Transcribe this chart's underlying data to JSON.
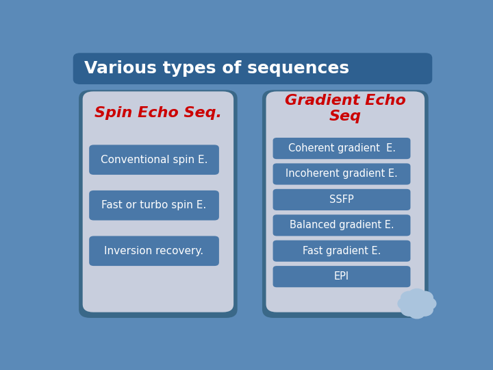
{
  "title": "Various types of sequences",
  "title_color": "#ffffff",
  "title_bg": "#2e6090",
  "bg_color": "#5b8ab8",
  "left_panel_bg": "#c8cedd",
  "right_panel_bg": "#c8cedd",
  "panel_shadow": "#3a6888",
  "left_header": "Spin Echo Seq.",
  "right_header": "Gradient Echo\nSeq",
  "header_color": "#cc0000",
  "box_color": "#4a78a8",
  "box_text_color": "#ffffff",
  "left_items": [
    "Conventional spin E.",
    "Fast or turbo spin E.",
    "Inversion recovery."
  ],
  "right_items": [
    "Coherent gradient  E.",
    "Incoherent gradient E.",
    "SSFP",
    "Balanced gradient E.",
    "Fast gradient E.",
    "EPI"
  ],
  "splash_color": "#aac4dd"
}
